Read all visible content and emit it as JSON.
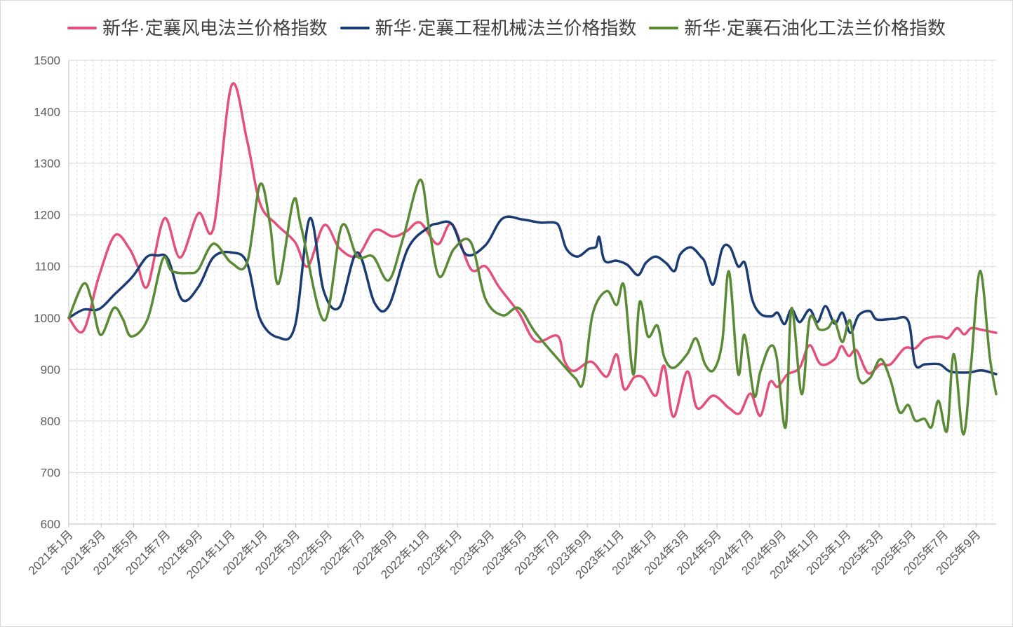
{
  "chart_data": {
    "type": "line",
    "smooth": true,
    "legend": "top-center",
    "grid": {
      "horizontal": "solid",
      "vertical": "dashed"
    },
    "xlim": [
      "2021-01-01",
      "2025-10-08"
    ],
    "ylim": [
      600,
      1500
    ],
    "yticks": [
      600,
      700,
      800,
      900,
      1000,
      1100,
      1200,
      1300,
      1400,
      1500
    ],
    "x_ticks": [
      {
        "date": "2021-01-01",
        "label": "2021年1月"
      },
      {
        "date": "2021-03-01",
        "label": "2021年3月"
      },
      {
        "date": "2021-05-01",
        "label": "2021年5月"
      },
      {
        "date": "2021-07-01",
        "label": "2021年7月"
      },
      {
        "date": "2021-09-01",
        "label": "2021年9月"
      },
      {
        "date": "2021-11-01",
        "label": "2021年11月"
      },
      {
        "date": "2022-01-01",
        "label": "2022年1月"
      },
      {
        "date": "2022-03-01",
        "label": "2022年3月"
      },
      {
        "date": "2022-05-01",
        "label": "2022年5月"
      },
      {
        "date": "2022-07-01",
        "label": "2022年7月"
      },
      {
        "date": "2022-09-01",
        "label": "2022年9月"
      },
      {
        "date": "2022-11-01",
        "label": "2022年11月"
      },
      {
        "date": "2023-01-01",
        "label": "2023年1月"
      },
      {
        "date": "2023-03-01",
        "label": "2023年3月"
      },
      {
        "date": "2023-05-01",
        "label": "2023年5月"
      },
      {
        "date": "2023-07-01",
        "label": "2023年7月"
      },
      {
        "date": "2023-09-01",
        "label": "2023年9月"
      },
      {
        "date": "2023-11-01",
        "label": "2023年11月"
      },
      {
        "date": "2024-01-01",
        "label": "2024年1月"
      },
      {
        "date": "2024-03-01",
        "label": "2024年3月"
      },
      {
        "date": "2024-05-01",
        "label": "2024年5月"
      },
      {
        "date": "2024-07-01",
        "label": "2024年7月"
      },
      {
        "date": "2024-09-01",
        "label": "2024年9月"
      },
      {
        "date": "2024-11-01",
        "label": "2024年11月"
      },
      {
        "date": "2025-01-01",
        "label": "2025年1月"
      },
      {
        "date": "2025-03-01",
        "label": "2025年3月"
      },
      {
        "date": "2025-05-01",
        "label": "2025年5月"
      },
      {
        "date": "2025-07-01",
        "label": "2025年7月"
      },
      {
        "date": "2025-09-01",
        "label": "2025年9月"
      }
    ],
    "series": [
      {
        "name": "新华·定襄风电法兰价格指数",
        "color": "#E3507A",
        "points": [
          [
            "2021-01-01",
            1000
          ],
          [
            "2021-01-29",
            975
          ],
          [
            "2021-02-25",
            1080
          ],
          [
            "2021-03-27",
            1160
          ],
          [
            "2021-04-23",
            1135
          ],
          [
            "2021-05-09",
            1100
          ],
          [
            "2021-05-28",
            1062
          ],
          [
            "2021-06-28",
            1193
          ],
          [
            "2021-07-28",
            1117
          ],
          [
            "2021-09-01",
            1203
          ],
          [
            "2021-09-29",
            1175
          ],
          [
            "2021-11-02",
            1450
          ],
          [
            "2021-12-01",
            1345
          ],
          [
            "2021-12-26",
            1222
          ],
          [
            "2022-01-26",
            1182
          ],
          [
            "2022-02-28",
            1147
          ],
          [
            "2022-03-24",
            1100
          ],
          [
            "2022-04-24",
            1180
          ],
          [
            "2022-05-23",
            1135
          ],
          [
            "2022-06-25",
            1120
          ],
          [
            "2022-07-28",
            1170
          ],
          [
            "2022-09-01",
            1158
          ],
          [
            "2022-09-26",
            1168
          ],
          [
            "2022-10-22",
            1185
          ],
          [
            "2022-11-24",
            1143
          ],
          [
            "2022-12-21",
            1182
          ],
          [
            "2023-01-26",
            1095
          ],
          [
            "2023-02-21",
            1100
          ],
          [
            "2023-03-18",
            1060
          ],
          [
            "2023-04-24",
            1010
          ],
          [
            "2023-05-26",
            955
          ],
          [
            "2023-07-06",
            965
          ],
          [
            "2023-07-19",
            917
          ],
          [
            "2023-08-06",
            897
          ],
          [
            "2023-09-08",
            915
          ],
          [
            "2023-10-07",
            886
          ],
          [
            "2023-10-26",
            929
          ],
          [
            "2023-11-09",
            862
          ],
          [
            "2023-11-28",
            885
          ],
          [
            "2023-12-16",
            883
          ],
          [
            "2024-01-08",
            849
          ],
          [
            "2024-01-24",
            907
          ],
          [
            "2024-02-10",
            808
          ],
          [
            "2024-03-06",
            896
          ],
          [
            "2024-03-25",
            825
          ],
          [
            "2024-04-24",
            849
          ],
          [
            "2024-05-24",
            825
          ],
          [
            "2024-06-13",
            815
          ],
          [
            "2024-07-03",
            853
          ],
          [
            "2024-07-22",
            810
          ],
          [
            "2024-08-09",
            875
          ],
          [
            "2024-08-24",
            866
          ],
          [
            "2024-09-11",
            890
          ],
          [
            "2024-10-04",
            903
          ],
          [
            "2024-10-23",
            947
          ],
          [
            "2024-11-13",
            910
          ],
          [
            "2024-12-09",
            920
          ],
          [
            "2024-12-22",
            945
          ],
          [
            "2025-01-05",
            926
          ],
          [
            "2025-01-20",
            937
          ],
          [
            "2025-02-10",
            893
          ],
          [
            "2025-03-04",
            910
          ],
          [
            "2025-03-23",
            910
          ],
          [
            "2025-04-18",
            941
          ],
          [
            "2025-05-08",
            941
          ],
          [
            "2025-05-27",
            959
          ],
          [
            "2025-06-23",
            964
          ],
          [
            "2025-07-09",
            961
          ],
          [
            "2025-07-26",
            980
          ],
          [
            "2025-08-09",
            968
          ],
          [
            "2025-08-22",
            980
          ],
          [
            "2025-09-11",
            977
          ],
          [
            "2025-10-08",
            971
          ]
        ]
      },
      {
        "name": "新华·定襄工程机械法兰价格指数",
        "color": "#1B3C73",
        "points": [
          [
            "2021-01-01",
            1000
          ],
          [
            "2021-01-29",
            1016
          ],
          [
            "2021-02-25",
            1017
          ],
          [
            "2021-03-27",
            1046
          ],
          [
            "2021-04-29",
            1080
          ],
          [
            "2021-05-26",
            1118
          ],
          [
            "2021-06-15",
            1121
          ],
          [
            "2021-07-05",
            1114
          ],
          [
            "2021-08-01",
            1035
          ],
          [
            "2021-09-01",
            1060
          ],
          [
            "2021-09-29",
            1118
          ],
          [
            "2021-11-02",
            1127
          ],
          [
            "2021-12-01",
            1107
          ],
          [
            "2021-12-26",
            998
          ],
          [
            "2022-01-30",
            962
          ],
          [
            "2022-02-28",
            985
          ],
          [
            "2022-03-28",
            1193
          ],
          [
            "2022-04-23",
            1052
          ],
          [
            "2022-05-23",
            1021
          ],
          [
            "2022-06-25",
            1127
          ],
          [
            "2022-07-28",
            1029
          ],
          [
            "2022-08-24",
            1023
          ],
          [
            "2022-09-29",
            1135
          ],
          [
            "2022-11-06",
            1175
          ],
          [
            "2022-11-24",
            1183
          ],
          [
            "2022-12-21",
            1182
          ],
          [
            "2023-01-17",
            1123
          ],
          [
            "2023-02-21",
            1141
          ],
          [
            "2023-03-25",
            1193
          ],
          [
            "2023-05-01",
            1191
          ],
          [
            "2023-06-04",
            1185
          ],
          [
            "2023-06-30",
            1185
          ],
          [
            "2023-07-10",
            1175
          ],
          [
            "2023-07-23",
            1134
          ],
          [
            "2023-08-13",
            1119
          ],
          [
            "2023-09-04",
            1134
          ],
          [
            "2023-09-17",
            1138
          ],
          [
            "2023-09-23",
            1157
          ],
          [
            "2023-10-03",
            1111
          ],
          [
            "2023-10-26",
            1111
          ],
          [
            "2023-11-15",
            1103
          ],
          [
            "2023-12-05",
            1083
          ],
          [
            "2023-12-20",
            1107
          ],
          [
            "2024-01-08",
            1119
          ],
          [
            "2024-01-28",
            1106
          ],
          [
            "2024-02-12",
            1091
          ],
          [
            "2024-02-22",
            1123
          ],
          [
            "2024-03-13",
            1137
          ],
          [
            "2024-04-02",
            1118
          ],
          [
            "2024-04-09",
            1107
          ],
          [
            "2024-04-24",
            1065
          ],
          [
            "2024-05-11",
            1134
          ],
          [
            "2024-05-26",
            1137
          ],
          [
            "2024-06-10",
            1100
          ],
          [
            "2024-06-23",
            1106
          ],
          [
            "2024-07-06",
            1037
          ],
          [
            "2024-07-22",
            1008
          ],
          [
            "2024-08-12",
            1003
          ],
          [
            "2024-08-24",
            1010
          ],
          [
            "2024-09-06",
            988
          ],
          [
            "2024-09-19",
            1017
          ],
          [
            "2024-10-04",
            992
          ],
          [
            "2024-10-23",
            1016
          ],
          [
            "2024-11-07",
            992
          ],
          [
            "2024-11-22",
            1023
          ],
          [
            "2024-12-09",
            989
          ],
          [
            "2024-12-24",
            1010
          ],
          [
            "2025-01-08",
            971
          ],
          [
            "2025-01-24",
            1005
          ],
          [
            "2025-02-13",
            1013
          ],
          [
            "2025-02-25",
            997
          ],
          [
            "2025-03-29",
            998
          ],
          [
            "2025-04-25",
            994
          ],
          [
            "2025-05-08",
            910
          ],
          [
            "2025-05-27",
            910
          ],
          [
            "2025-06-23",
            910
          ],
          [
            "2025-07-13",
            896
          ],
          [
            "2025-08-16",
            894
          ],
          [
            "2025-09-11",
            898
          ],
          [
            "2025-10-08",
            891
          ]
        ]
      },
      {
        "name": "新华·定襄石油化工法兰价格指数",
        "color": "#5A8A36",
        "points": [
          [
            "2021-01-01",
            1000
          ],
          [
            "2021-01-29",
            1066
          ],
          [
            "2021-02-12",
            1037
          ],
          [
            "2021-02-28",
            967
          ],
          [
            "2021-03-25",
            1019
          ],
          [
            "2021-04-11",
            998
          ],
          [
            "2021-04-27",
            964
          ],
          [
            "2021-05-28",
            998
          ],
          [
            "2021-06-25",
            1114
          ],
          [
            "2021-07-12",
            1091
          ],
          [
            "2021-08-14",
            1087
          ],
          [
            "2021-09-01",
            1094
          ],
          [
            "2021-09-29",
            1144
          ],
          [
            "2021-11-02",
            1107
          ],
          [
            "2021-12-01",
            1107
          ],
          [
            "2021-12-26",
            1259
          ],
          [
            "2022-01-14",
            1182
          ],
          [
            "2022-01-30",
            1066
          ],
          [
            "2022-02-25",
            1227
          ],
          [
            "2022-03-12",
            1175
          ],
          [
            "2022-04-24",
            995
          ],
          [
            "2022-05-27",
            1178
          ],
          [
            "2022-06-25",
            1119
          ],
          [
            "2022-07-25",
            1119
          ],
          [
            "2022-08-24",
            1073
          ],
          [
            "2022-09-20",
            1155
          ],
          [
            "2022-10-22",
            1268
          ],
          [
            "2022-11-08",
            1175
          ],
          [
            "2022-11-27",
            1080
          ],
          [
            "2022-12-25",
            1134
          ],
          [
            "2023-01-26",
            1147
          ],
          [
            "2023-02-21",
            1037
          ],
          [
            "2023-03-25",
            1005
          ],
          [
            "2023-04-24",
            1019
          ],
          [
            "2023-05-26",
            971
          ],
          [
            "2023-07-13",
            913
          ],
          [
            "2023-08-09",
            883
          ],
          [
            "2023-08-24",
            875
          ],
          [
            "2023-09-11",
            1008
          ],
          [
            "2023-10-07",
            1052
          ],
          [
            "2023-10-26",
            1025
          ],
          [
            "2023-11-09",
            1062
          ],
          [
            "2023-11-26",
            890
          ],
          [
            "2023-12-08",
            1031
          ],
          [
            "2023-12-24",
            964
          ],
          [
            "2024-01-11",
            985
          ],
          [
            "2024-01-24",
            924
          ],
          [
            "2024-02-10",
            903
          ],
          [
            "2024-03-06",
            930
          ],
          [
            "2024-03-23",
            960
          ],
          [
            "2024-04-09",
            910
          ],
          [
            "2024-04-25",
            899
          ],
          [
            "2024-05-11",
            953
          ],
          [
            "2024-05-24",
            1090
          ],
          [
            "2024-06-10",
            892
          ],
          [
            "2024-06-22",
            967
          ],
          [
            "2024-07-10",
            849
          ],
          [
            "2024-07-22",
            896
          ],
          [
            "2024-08-09",
            944
          ],
          [
            "2024-08-22",
            924
          ],
          [
            "2024-09-08",
            788
          ],
          [
            "2024-09-19",
            1019
          ],
          [
            "2024-10-08",
            852
          ],
          [
            "2024-10-23",
            998
          ],
          [
            "2024-11-10",
            978
          ],
          [
            "2024-11-26",
            980
          ],
          [
            "2024-12-09",
            994
          ],
          [
            "2024-12-24",
            953
          ],
          [
            "2025-01-08",
            994
          ],
          [
            "2025-01-24",
            883
          ],
          [
            "2025-02-13",
            883
          ],
          [
            "2025-03-04",
            920
          ],
          [
            "2025-03-23",
            879
          ],
          [
            "2025-04-09",
            817
          ],
          [
            "2025-04-25",
            831
          ],
          [
            "2025-05-08",
            801
          ],
          [
            "2025-05-26",
            804
          ],
          [
            "2025-06-08",
            788
          ],
          [
            "2025-06-21",
            839
          ],
          [
            "2025-07-07",
            781
          ],
          [
            "2025-07-20",
            930
          ],
          [
            "2025-08-07",
            774
          ],
          [
            "2025-08-22",
            910
          ],
          [
            "2025-09-08",
            1091
          ],
          [
            "2025-09-26",
            924
          ],
          [
            "2025-10-08",
            852
          ]
        ]
      }
    ]
  }
}
